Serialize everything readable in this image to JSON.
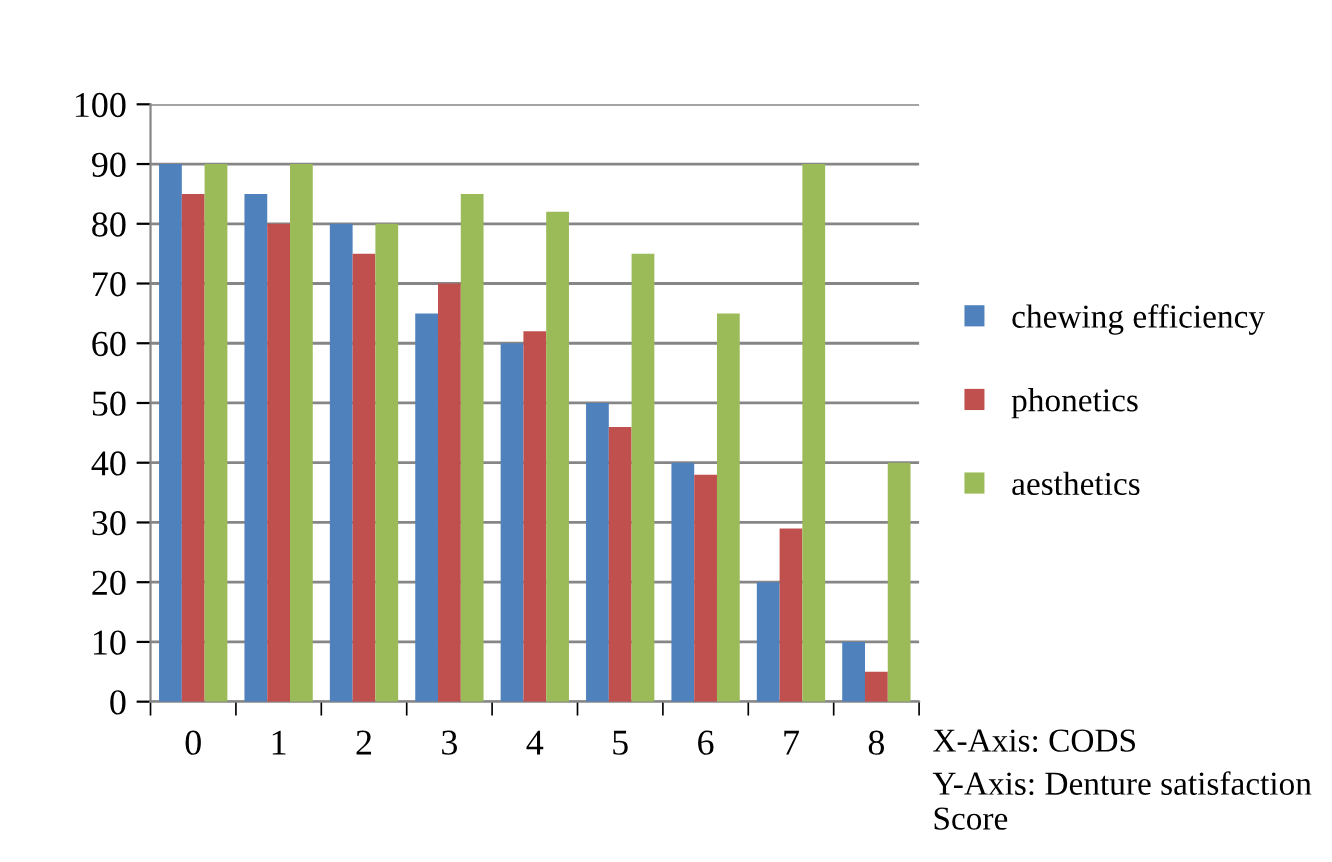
{
  "chart_data": {
    "type": "bar",
    "categories": [
      "0",
      "1",
      "2",
      "3",
      "4",
      "5",
      "6",
      "7",
      "8"
    ],
    "series": [
      {
        "name": "chewing efficiency",
        "color": "#4f81bd",
        "values": [
          90,
          85,
          80,
          65,
          60,
          50,
          40,
          20,
          10
        ]
      },
      {
        "name": "phonetics",
        "color": "#c0504d",
        "values": [
          85,
          80,
          75,
          70,
          62,
          46,
          38,
          29,
          5
        ]
      },
      {
        "name": "aesthetics",
        "color": "#9bbb59",
        "values": [
          90,
          90,
          80,
          85,
          82,
          75,
          65,
          90,
          40
        ]
      }
    ],
    "ylim": [
      0,
      100
    ],
    "yticks": [
      0,
      10,
      20,
      30,
      40,
      50,
      60,
      70,
      80,
      90,
      100
    ],
    "grid": "y",
    "legend": "right",
    "annotations": [
      "X-Axis: CODS",
      "Y-Axis: Denture satisfaction Score"
    ]
  }
}
